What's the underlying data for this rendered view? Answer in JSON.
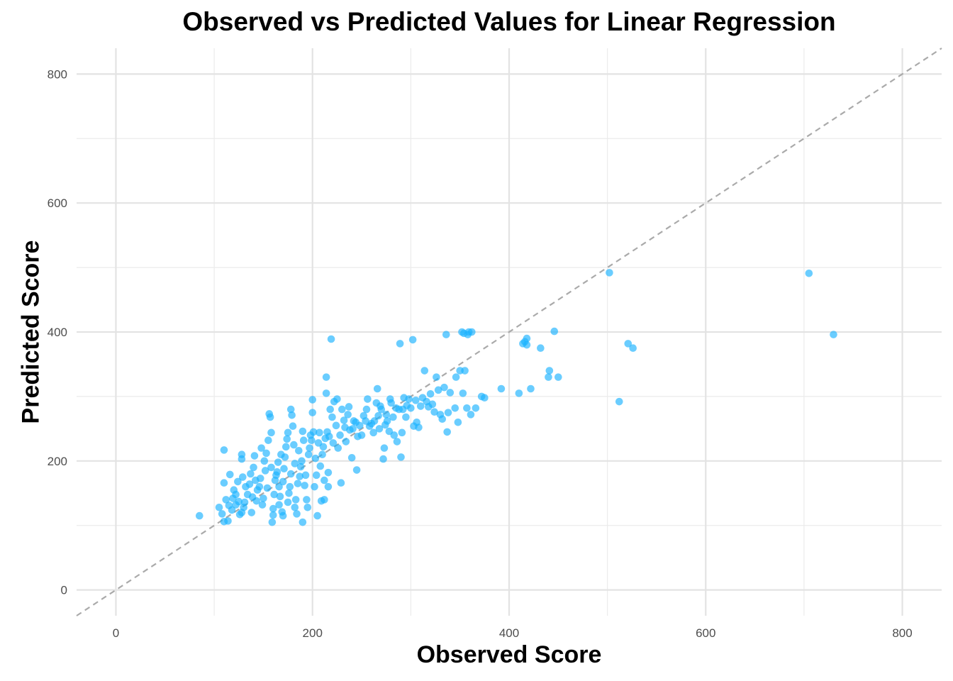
{
  "chart_data": {
    "type": "scatter",
    "title": "Observed vs Predicted Values for Linear Regression",
    "xlabel": "Observed Score",
    "ylabel": "Predicted Score",
    "xlim": [
      -40,
      840
    ],
    "ylim": [
      -40,
      840
    ],
    "xticks": [
      0,
      200,
      400,
      600,
      800
    ],
    "yticks": [
      0,
      200,
      400,
      600,
      800
    ],
    "grid": true,
    "reference_line": {
      "slope": 1,
      "intercept": 0,
      "style": "dashed",
      "color": "#aaaaaa"
    },
    "point_color": "#1AB2FF",
    "series": [
      {
        "points": [
          [
            85,
            115
          ],
          [
            105,
            128
          ],
          [
            108,
            118
          ],
          [
            110,
            217
          ],
          [
            110,
            166
          ],
          [
            110,
            106
          ],
          [
            112,
            140
          ],
          [
            114,
            107
          ],
          [
            115,
            131
          ],
          [
            116,
            179
          ],
          [
            118,
            124
          ],
          [
            119,
            142
          ],
          [
            120,
            155
          ],
          [
            122,
            148
          ],
          [
            122,
            132
          ],
          [
            124,
            168
          ],
          [
            125,
            137
          ],
          [
            126,
            117
          ],
          [
            128,
            120
          ],
          [
            128,
            203
          ],
          [
            128,
            210
          ],
          [
            129,
            175
          ],
          [
            130,
            128
          ],
          [
            131,
            136
          ],
          [
            132,
            160
          ],
          [
            134,
            148
          ],
          [
            136,
            164
          ],
          [
            137,
            180
          ],
          [
            138,
            120
          ],
          [
            139,
            144
          ],
          [
            140,
            190
          ],
          [
            141,
            208
          ],
          [
            142,
            170
          ],
          [
            143,
            138
          ],
          [
            144,
            155
          ],
          [
            146,
            160
          ],
          [
            147,
            173
          ],
          [
            148,
            220
          ],
          [
            149,
            132
          ],
          [
            150,
            142
          ],
          [
            151,
            200
          ],
          [
            152,
            185
          ],
          [
            153,
            212
          ],
          [
            154,
            158
          ],
          [
            155,
            232
          ],
          [
            156,
            273
          ],
          [
            157,
            268
          ],
          [
            158,
            244
          ],
          [
            158,
            190
          ],
          [
            159,
            105
          ],
          [
            160,
            126
          ],
          [
            160,
            116
          ],
          [
            161,
            148
          ],
          [
            162,
            170
          ],
          [
            163,
            178
          ],
          [
            164,
            183
          ],
          [
            165,
            198
          ],
          [
            166,
            160
          ],
          [
            166,
            132
          ],
          [
            167,
            145
          ],
          [
            168,
            210
          ],
          [
            169,
            121
          ],
          [
            170,
            115
          ],
          [
            170,
            168
          ],
          [
            171,
            188
          ],
          [
            172,
            206
          ],
          [
            173,
            222
          ],
          [
            174,
            234
          ],
          [
            175,
            244
          ],
          [
            175,
            136
          ],
          [
            176,
            150
          ],
          [
            177,
            160
          ],
          [
            178,
            180
          ],
          [
            178,
            280
          ],
          [
            179,
            271
          ],
          [
            180,
            254
          ],
          [
            181,
            225
          ],
          [
            182,
            196
          ],
          [
            182,
            128
          ],
          [
            183,
            140
          ],
          [
            184,
            118
          ],
          [
            185,
            165
          ],
          [
            186,
            216
          ],
          [
            187,
            176
          ],
          [
            188,
            191
          ],
          [
            189,
            200
          ],
          [
            190,
            105
          ],
          [
            190,
            246
          ],
          [
            191,
            232
          ],
          [
            192,
            162
          ],
          [
            193,
            178
          ],
          [
            194,
            140
          ],
          [
            195,
            128
          ],
          [
            196,
            210
          ],
          [
            197,
            220
          ],
          [
            198,
            240
          ],
          [
            199,
            232
          ],
          [
            200,
            275
          ],
          [
            200,
            295
          ],
          [
            201,
            245
          ],
          [
            202,
            160
          ],
          [
            203,
            204
          ],
          [
            204,
            178
          ],
          [
            205,
            115
          ],
          [
            206,
            228
          ],
          [
            207,
            244
          ],
          [
            208,
            192
          ],
          [
            209,
            138
          ],
          [
            210,
            210
          ],
          [
            211,
            222
          ],
          [
            212,
            140
          ],
          [
            212,
            170
          ],
          [
            213,
            235
          ],
          [
            214,
            330
          ],
          [
            214,
            305
          ],
          [
            215,
            245
          ],
          [
            216,
            160
          ],
          [
            216,
            182
          ],
          [
            217,
            238
          ],
          [
            218,
            280
          ],
          [
            219,
            389
          ],
          [
            220,
            268
          ],
          [
            221,
            228
          ],
          [
            222,
            292
          ],
          [
            224,
            255
          ],
          [
            225,
            296
          ],
          [
            226,
            220
          ],
          [
            228,
            240
          ],
          [
            229,
            166
          ],
          [
            230,
            280
          ],
          [
            232,
            263
          ],
          [
            233,
            252
          ],
          [
            234,
            230
          ],
          [
            236,
            272
          ],
          [
            237,
            284
          ],
          [
            238,
            248
          ],
          [
            240,
            205
          ],
          [
            241,
            250
          ],
          [
            242,
            262
          ],
          [
            244,
            260
          ],
          [
            245,
            186
          ],
          [
            246,
            238
          ],
          [
            248,
            255
          ],
          [
            250,
            240
          ],
          [
            252,
            270
          ],
          [
            254,
            262
          ],
          [
            255,
            280
          ],
          [
            256,
            296
          ],
          [
            258,
            254
          ],
          [
            260,
            258
          ],
          [
            262,
            244
          ],
          [
            263,
            262
          ],
          [
            265,
            290
          ],
          [
            266,
            312
          ],
          [
            267,
            270
          ],
          [
            268,
            250
          ],
          [
            269,
            285
          ],
          [
            270,
            280
          ],
          [
            272,
            203
          ],
          [
            273,
            220
          ],
          [
            274,
            256
          ],
          [
            275,
            272
          ],
          [
            276,
            262
          ],
          [
            278,
            246
          ],
          [
            279,
            296
          ],
          [
            280,
            290
          ],
          [
            282,
            268
          ],
          [
            283,
            240
          ],
          [
            285,
            282
          ],
          [
            286,
            230
          ],
          [
            288,
            280
          ],
          [
            289,
            382
          ],
          [
            290,
            206
          ],
          [
            291,
            244
          ],
          [
            292,
            280
          ],
          [
            293,
            298
          ],
          [
            295,
            268
          ],
          [
            296,
            286
          ],
          [
            298,
            296
          ],
          [
            300,
            282
          ],
          [
            302,
            388
          ],
          [
            303,
            254
          ],
          [
            305,
            294
          ],
          [
            306,
            260
          ],
          [
            308,
            252
          ],
          [
            310,
            285
          ],
          [
            312,
            298
          ],
          [
            314,
            340
          ],
          [
            316,
            292
          ],
          [
            318,
            284
          ],
          [
            320,
            304
          ],
          [
            322,
            288
          ],
          [
            324,
            276
          ],
          [
            326,
            330
          ],
          [
            328,
            310
          ],
          [
            330,
            272
          ],
          [
            332,
            265
          ],
          [
            334,
            314
          ],
          [
            336,
            396
          ],
          [
            337,
            245
          ],
          [
            338,
            275
          ],
          [
            340,
            306
          ],
          [
            345,
            282
          ],
          [
            346,
            330
          ],
          [
            348,
            260
          ],
          [
            350,
            340
          ],
          [
            352,
            400
          ],
          [
            353,
            305
          ],
          [
            354,
            398
          ],
          [
            355,
            340
          ],
          [
            357,
            282
          ],
          [
            358,
            396
          ],
          [
            359,
            400
          ],
          [
            361,
            272
          ],
          [
            362,
            400
          ],
          [
            366,
            282
          ],
          [
            372,
            300
          ],
          [
            375,
            298
          ],
          [
            392,
            312
          ],
          [
            410,
            305
          ],
          [
            414,
            382
          ],
          [
            416,
            385
          ],
          [
            418,
            380
          ],
          [
            418,
            390
          ],
          [
            422,
            312
          ],
          [
            432,
            375
          ],
          [
            440,
            330
          ],
          [
            441,
            340
          ],
          [
            446,
            401
          ],
          [
            450,
            330
          ],
          [
            502,
            492
          ],
          [
            512,
            292
          ],
          [
            521,
            382
          ],
          [
            526,
            375
          ],
          [
            705,
            491
          ],
          [
            730,
            396
          ]
        ]
      }
    ]
  }
}
